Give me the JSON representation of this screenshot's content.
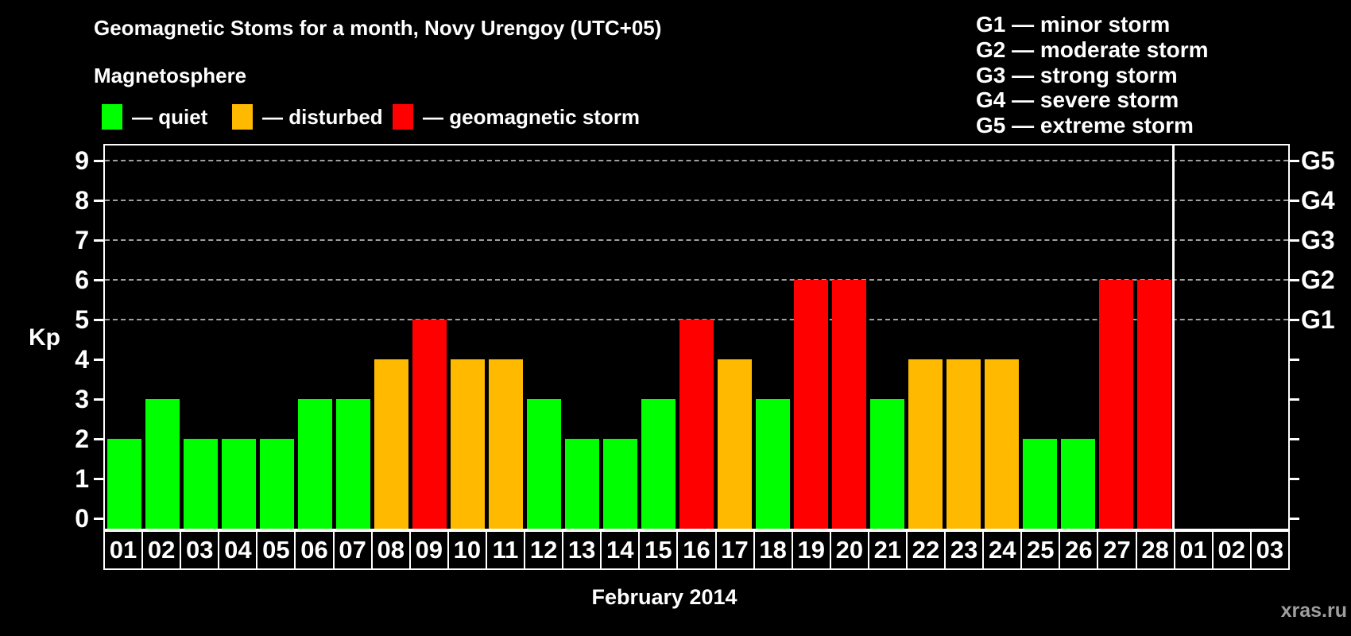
{
  "title": "Geomagnetic Stoms for a month, Novy Urengoy (UTC+05)",
  "legend": {
    "heading": "Magnetosphere",
    "items": [
      {
        "name": "quiet",
        "label": "— quiet",
        "color": "#00ff00"
      },
      {
        "name": "disturbed",
        "label": "— disturbed",
        "color": "#ffba00"
      },
      {
        "name": "storm",
        "label": "— geomagnetic storm",
        "color": "#ff0000"
      }
    ]
  },
  "storm_scale_legend": [
    "G1 — minor storm",
    "G2 — moderate storm",
    "G3 — strong storm",
    "G4 — severe storm",
    "G5 — extreme storm"
  ],
  "status_colors": {
    "quiet": "#00ff00",
    "disturbed": "#ffba00",
    "storm": "#ff0000"
  },
  "chart_data": {
    "type": "bar",
    "title": "Geomagnetic Stoms for a month, Novy Urengoy (UTC+05)",
    "ylabel": "Kp",
    "xlabel": "February 2014",
    "ylim": [
      0,
      9
    ],
    "yticks": [
      0,
      1,
      2,
      3,
      4,
      5,
      6,
      7,
      8,
      9
    ],
    "gridlines_at": [
      5,
      6,
      7,
      8,
      9
    ],
    "grid_style": "dashed, only at storm levels G1-G5",
    "legend_position": "top",
    "right_axis_labels": [
      {
        "kp": 5,
        "label": "G1"
      },
      {
        "kp": 6,
        "label": "G2"
      },
      {
        "kp": 7,
        "label": "G3"
      },
      {
        "kp": 8,
        "label": "G4"
      },
      {
        "kp": 9,
        "label": "G5"
      }
    ],
    "categories": [
      "01",
      "02",
      "03",
      "04",
      "05",
      "06",
      "07",
      "08",
      "09",
      "10",
      "11",
      "12",
      "13",
      "14",
      "15",
      "16",
      "17",
      "18",
      "19",
      "20",
      "21",
      "22",
      "23",
      "24",
      "25",
      "26",
      "27",
      "28",
      "01",
      "02",
      "03"
    ],
    "values": [
      2,
      3,
      2,
      2,
      2,
      3,
      3,
      4,
      5,
      4,
      4,
      3,
      2,
      2,
      3,
      5,
      4,
      3,
      6,
      6,
      3,
      4,
      4,
      4,
      2,
      2,
      6,
      6,
      null,
      null,
      null
    ],
    "statuses": [
      "quiet",
      "quiet",
      "quiet",
      "quiet",
      "quiet",
      "quiet",
      "quiet",
      "disturbed",
      "storm",
      "disturbed",
      "disturbed",
      "quiet",
      "quiet",
      "quiet",
      "quiet",
      "storm",
      "disturbed",
      "quiet",
      "storm",
      "storm",
      "quiet",
      "disturbed",
      "disturbed",
      "disturbed",
      "quiet",
      "quiet",
      "storm",
      "storm",
      null,
      null,
      null
    ],
    "month_separator_after": 28
  },
  "watermark": "xras.ru"
}
